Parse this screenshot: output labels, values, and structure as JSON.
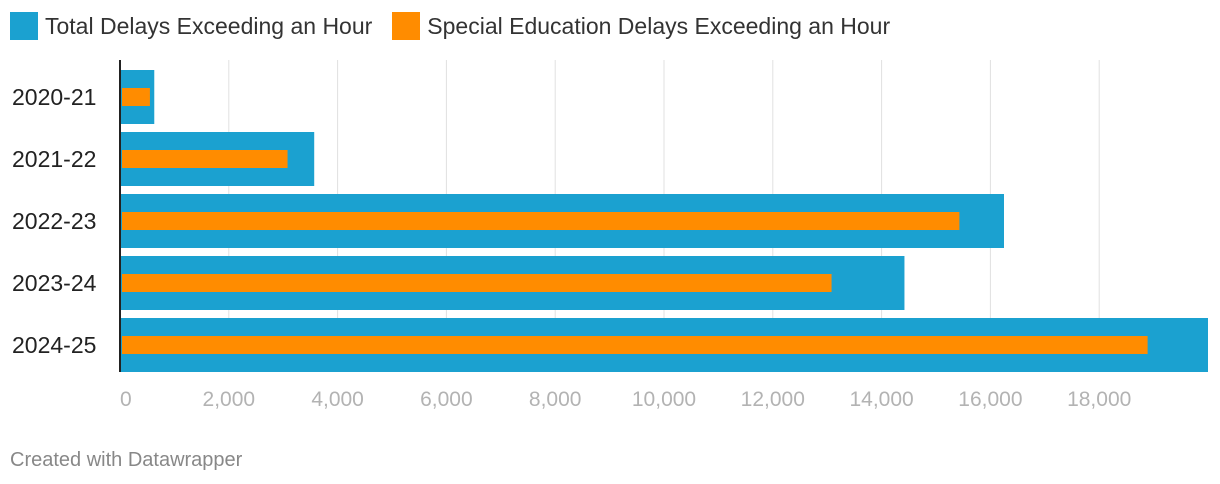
{
  "chart_data": {
    "type": "bar",
    "orientation": "horizontal",
    "categories": [
      "2020-21",
      "2021-22",
      "2022-23",
      "2023-24",
      "2024-25"
    ],
    "series": [
      {
        "name": "Total Delays Exceeding an Hour",
        "color": "#1ba1d0",
        "values": [
          630,
          3570,
          16250,
          14420,
          20000
        ]
      },
      {
        "name": "Special Education Delays Exceeding an Hour",
        "color": "#ff8c00",
        "values": [
          550,
          3080,
          15430,
          13080,
          18890
        ]
      }
    ],
    "xlim": [
      0,
      20000
    ],
    "xticks": [
      0,
      2000,
      4000,
      6000,
      8000,
      10000,
      12000,
      14000,
      16000,
      18000
    ],
    "xtick_labels": [
      "0",
      "2,000",
      "4,000",
      "6,000",
      "8,000",
      "10,000",
      "12,000",
      "14,000",
      "16,000",
      "18,000"
    ],
    "grid": true,
    "legend": "top-left"
  },
  "footer": {
    "credit": "Created with Datawrapper"
  }
}
